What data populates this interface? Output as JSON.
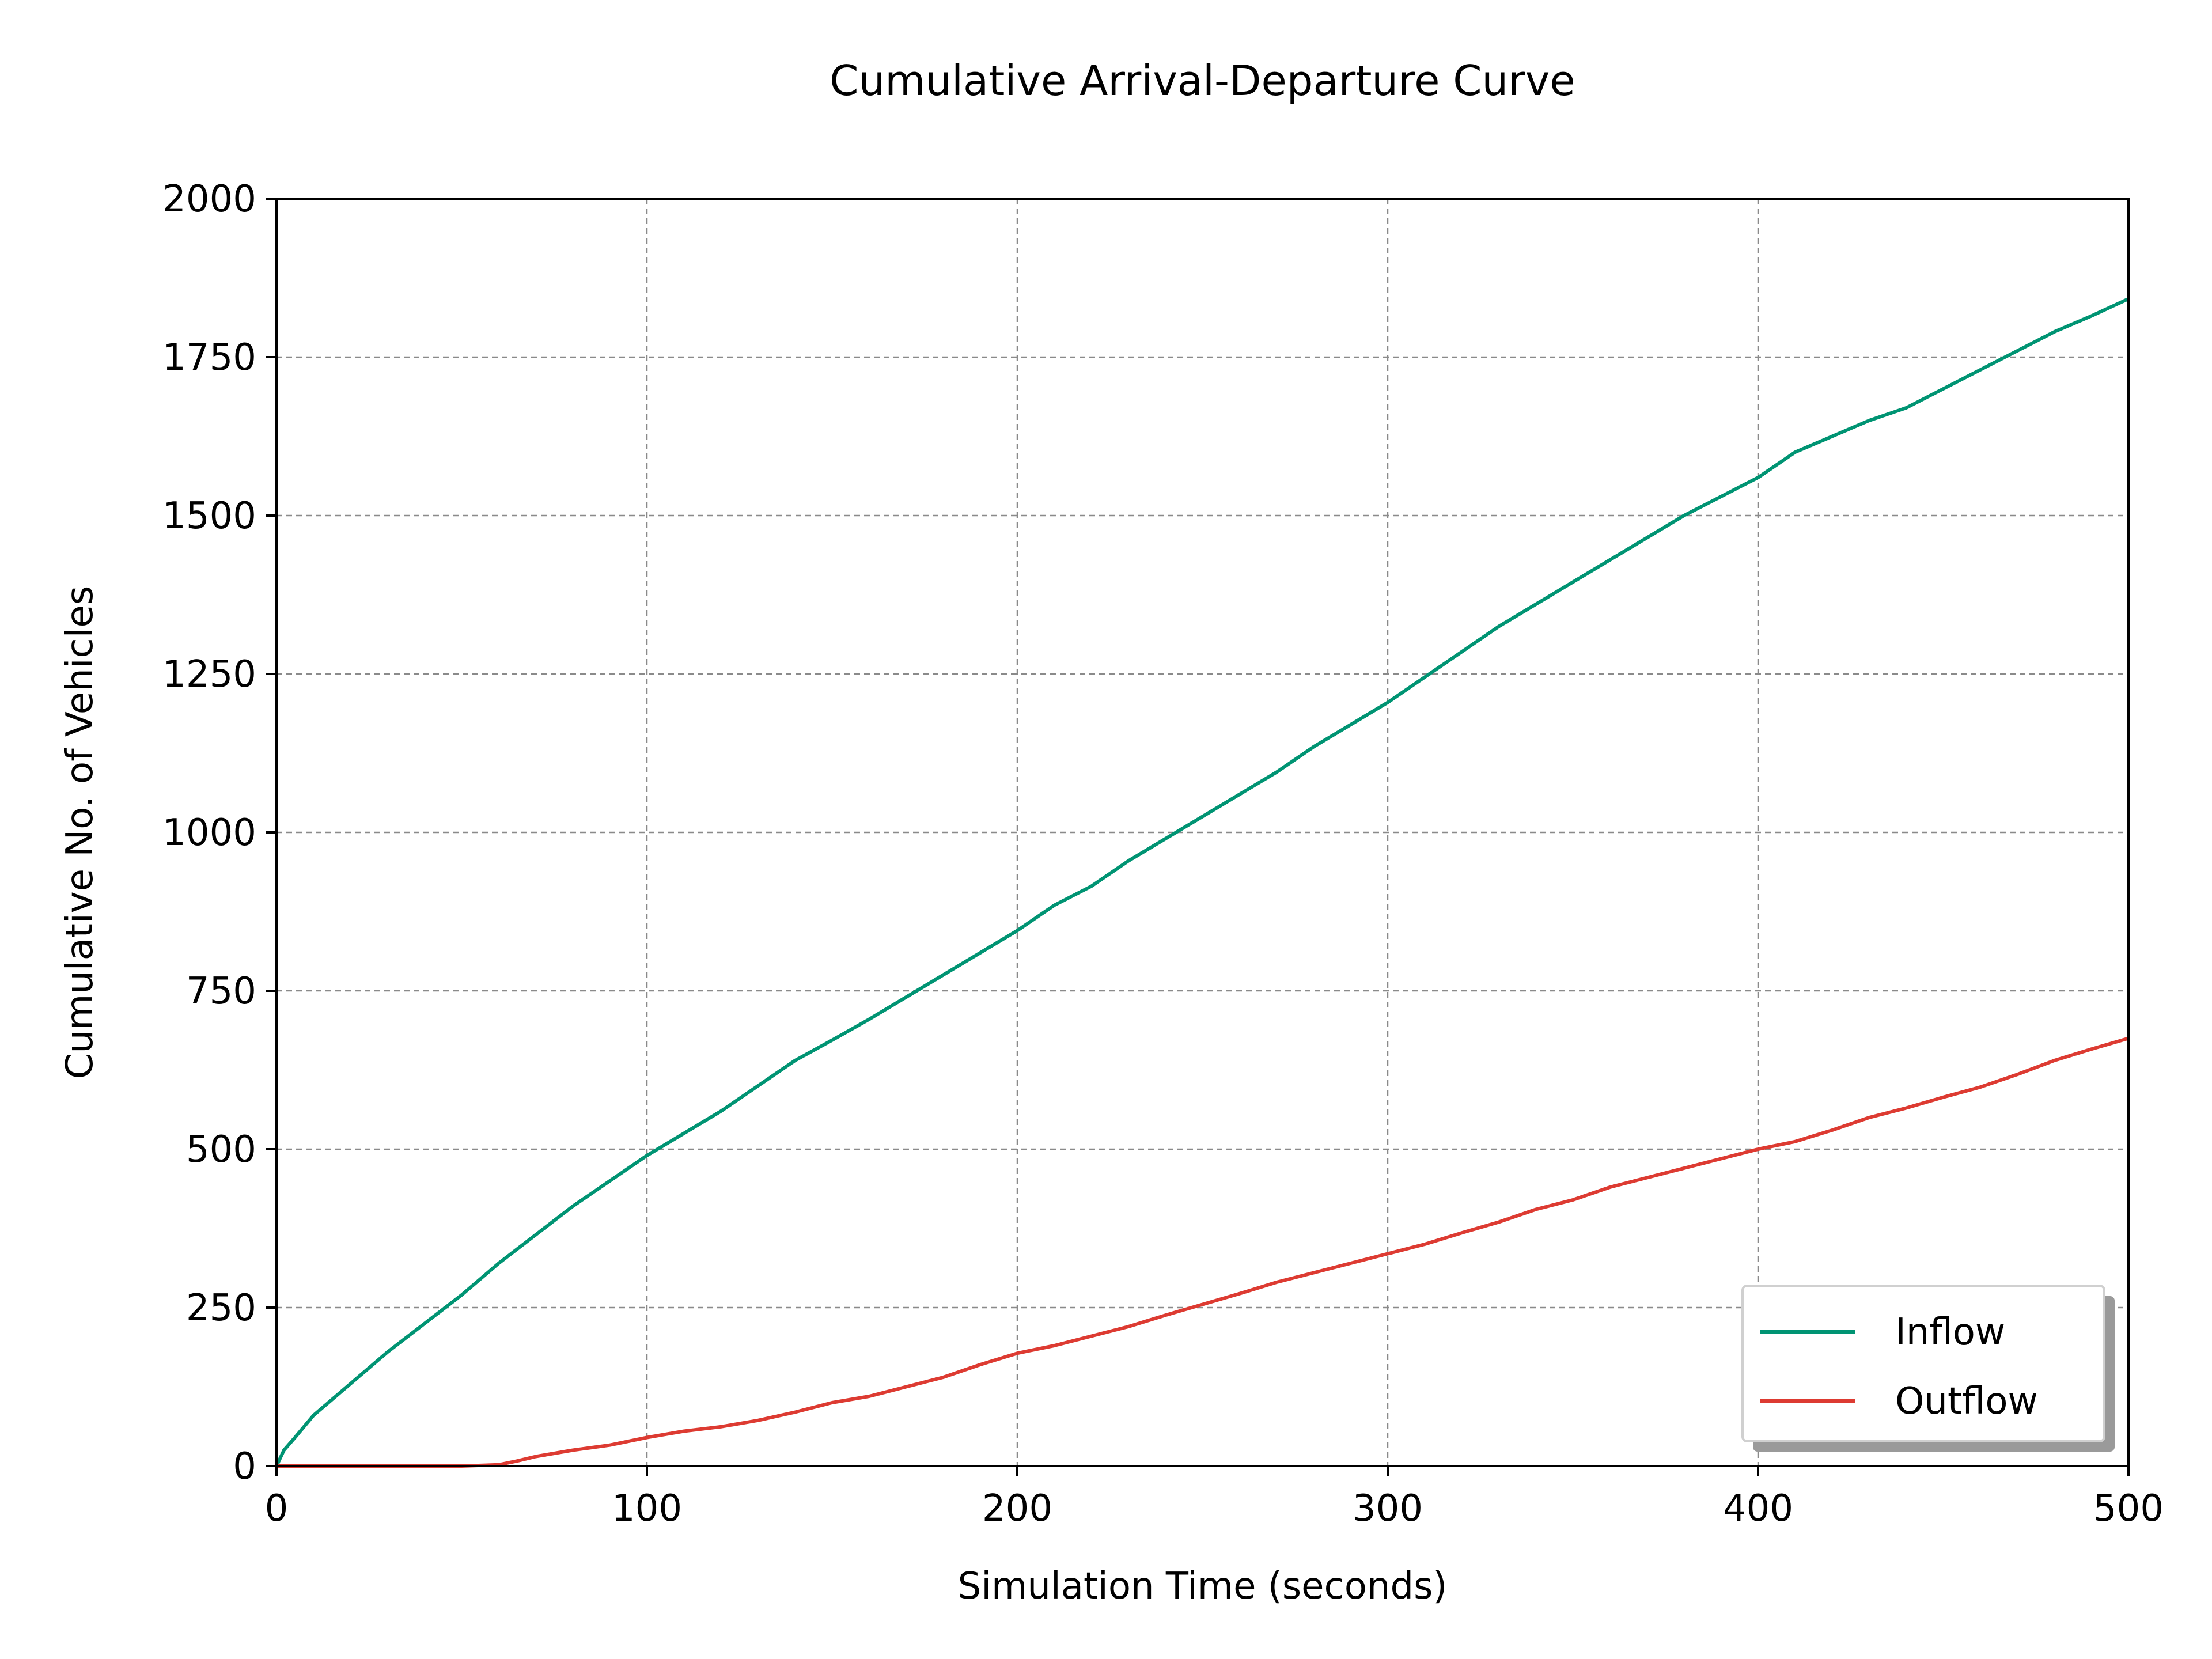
{
  "chart_data": {
    "type": "line",
    "title": "Cumulative Arrival-Departure Curve",
    "xlabel": "Simulation Time (seconds)",
    "ylabel": "Cumulative No. of Vehicles",
    "xlim": [
      0,
      500
    ],
    "ylim": [
      0,
      2000
    ],
    "xticks": [
      0,
      100,
      200,
      300,
      400,
      500
    ],
    "yticks": [
      0,
      250,
      500,
      750,
      1000,
      1250,
      1500,
      1750,
      2000
    ],
    "xtick_labels": [
      "0",
      "100",
      "200",
      "300",
      "400",
      "500"
    ],
    "ytick_labels": [
      "0",
      "250",
      "500",
      "750",
      "1000",
      "1250",
      "1500",
      "1750",
      "2000"
    ],
    "grid": true,
    "legend_position": "lower-right",
    "series": [
      {
        "name": "Inflow",
        "color": "#009473",
        "x": [
          0,
          2,
          5,
          10,
          20,
          30,
          40,
          50,
          60,
          70,
          80,
          90,
          100,
          110,
          120,
          130,
          140,
          150,
          160,
          170,
          180,
          190,
          200,
          210,
          220,
          230,
          240,
          250,
          260,
          270,
          280,
          290,
          300,
          310,
          320,
          330,
          340,
          350,
          360,
          370,
          380,
          390,
          400,
          410,
          420,
          430,
          440,
          450,
          460,
          470,
          480,
          490,
          500
        ],
        "y": [
          0,
          25,
          45,
          80,
          130,
          180,
          225,
          270,
          320,
          365,
          410,
          450,
          490,
          525,
          560,
          600,
          640,
          672,
          705,
          740,
          775,
          810,
          845,
          885,
          915,
          955,
          990,
          1025,
          1060,
          1095,
          1135,
          1170,
          1205,
          1245,
          1285,
          1325,
          1360,
          1395,
          1430,
          1465,
          1500,
          1530,
          1560,
          1600,
          1625,
          1650,
          1670,
          1700,
          1730,
          1760,
          1790,
          1815,
          1842
        ]
      },
      {
        "name": "Outflow",
        "color": "#dd3b32",
        "x": [
          0,
          20,
          40,
          50,
          60,
          65,
          70,
          80,
          90,
          100,
          110,
          120,
          130,
          140,
          150,
          160,
          170,
          180,
          190,
          200,
          210,
          220,
          230,
          240,
          250,
          260,
          270,
          280,
          290,
          300,
          310,
          320,
          330,
          340,
          350,
          360,
          370,
          380,
          390,
          400,
          410,
          420,
          430,
          440,
          450,
          460,
          470,
          480,
          490,
          500
        ],
        "y": [
          0,
          0,
          0,
          0,
          2,
          8,
          15,
          25,
          33,
          45,
          55,
          62,
          72,
          85,
          100,
          110,
          125,
          140,
          160,
          178,
          190,
          205,
          220,
          238,
          255,
          272,
          290,
          305,
          320,
          335,
          350,
          368,
          385,
          405,
          420,
          440,
          455,
          470,
          485,
          500,
          512,
          530,
          550,
          565,
          582,
          598,
          618,
          640,
          658,
          675
        ]
      }
    ]
  }
}
